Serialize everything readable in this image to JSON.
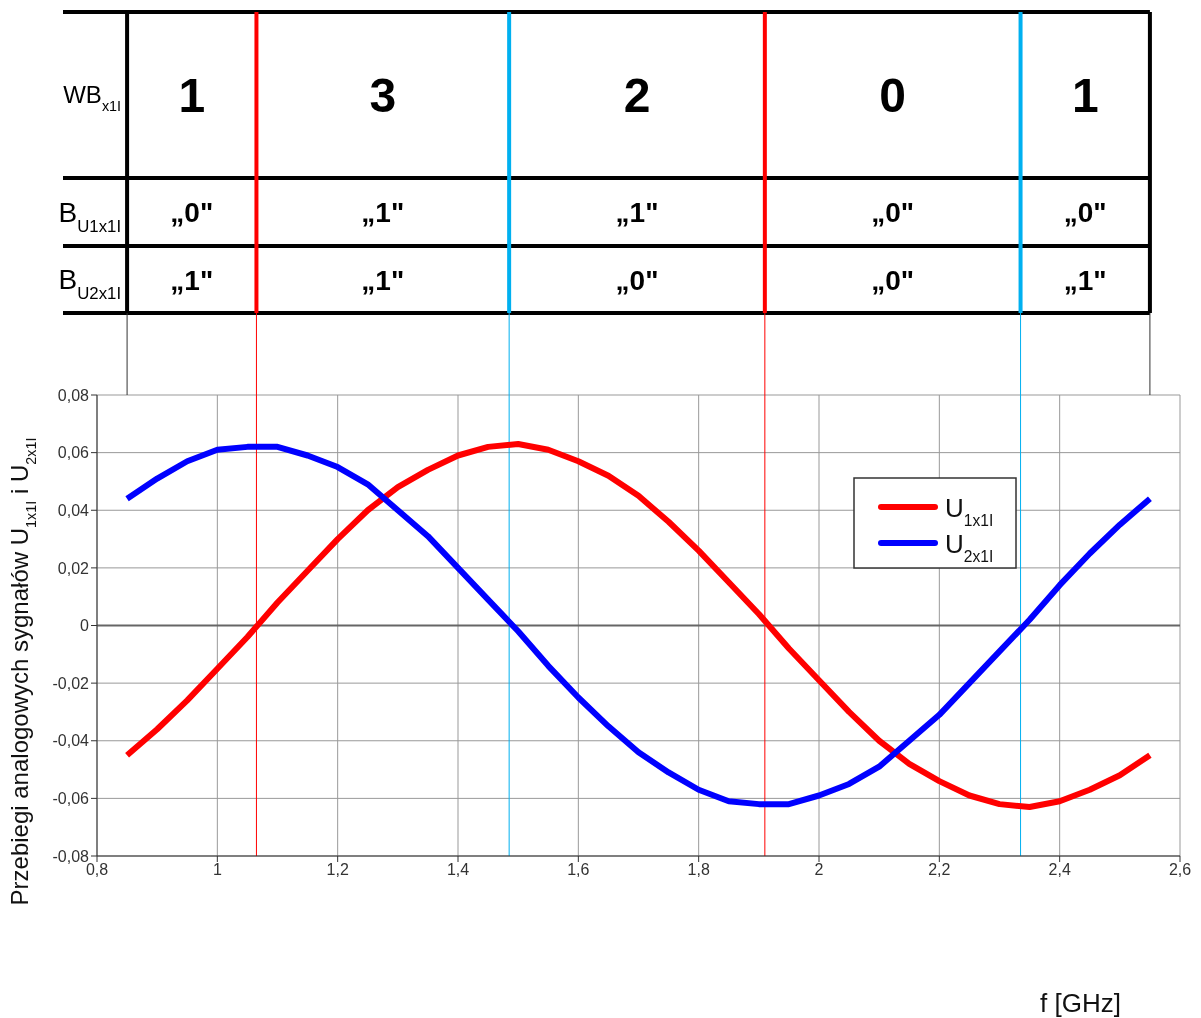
{
  "chart_data": {
    "type": "line",
    "xlabel": "f [GHz]",
    "ylabel": "Przebiegi analogowych sygnałów U$_{1x1I}$ i U$_{2x1I}$",
    "x": [
      0.85,
      0.9,
      0.95,
      1.0,
      1.05,
      1.1,
      1.15,
      1.2,
      1.25,
      1.3,
      1.35,
      1.4,
      1.45,
      1.5,
      1.55,
      1.6,
      1.65,
      1.7,
      1.75,
      1.8,
      1.85,
      1.9,
      1.95,
      2.0,
      2.05,
      2.1,
      2.15,
      2.2,
      2.25,
      2.3,
      2.35,
      2.4,
      2.45,
      2.5,
      2.55
    ],
    "series": [
      {
        "name": "U$_{1x1I}$",
        "color": "#ff0000",
        "values": [
          -0.045,
          -0.036,
          -0.026,
          -0.015,
          -0.004,
          0.008,
          0.019,
          0.03,
          0.04,
          0.048,
          0.054,
          0.059,
          0.062,
          0.063,
          0.061,
          0.057,
          0.052,
          0.045,
          0.036,
          0.026,
          0.015,
          0.004,
          -0.008,
          -0.019,
          -0.03,
          -0.04,
          -0.048,
          -0.054,
          -0.059,
          -0.062,
          -0.063,
          -0.061,
          -0.057,
          -0.052,
          -0.045
        ]
      },
      {
        "name": "U$_{2x1I}$",
        "color": "#0000ff",
        "values": [
          0.044,
          0.051,
          0.057,
          0.061,
          0.062,
          0.062,
          0.059,
          0.055,
          0.049,
          0.04,
          0.031,
          0.02,
          0.009,
          -0.002,
          -0.014,
          -0.025,
          -0.035,
          -0.044,
          -0.051,
          -0.057,
          -0.061,
          -0.062,
          -0.062,
          -0.059,
          -0.055,
          -0.049,
          -0.04,
          -0.031,
          -0.02,
          -0.009,
          0.002,
          0.014,
          0.025,
          0.035,
          0.044
        ]
      }
    ],
    "xlim": [
      0.8,
      2.6
    ],
    "xticks": [
      {
        "value": 0.8,
        "label": "0,8"
      },
      1,
      {
        "value": 1.2,
        "label": "1,2"
      },
      {
        "value": 1.4,
        "label": "1,4"
      },
      {
        "value": 1.6,
        "label": "1,6"
      },
      {
        "value": 1.8,
        "label": "1,8"
      },
      2,
      {
        "value": 2.2,
        "label": "2,2"
      },
      {
        "value": 2.4,
        "label": "2,4"
      },
      {
        "value": 2.6,
        "label": "2,6"
      }
    ],
    "ylim": [
      -0.08,
      0.08
    ],
    "yticks": [
      {
        "value": -0.08,
        "label": "-0,08"
      },
      {
        "value": -0.06,
        "label": "-0,06"
      },
      {
        "value": -0.04,
        "label": "-0,04"
      },
      {
        "value": -0.02,
        "label": "-0,02"
      },
      0,
      {
        "value": 0.02,
        "label": "0,02"
      },
      {
        "value": 0.04,
        "label": "0,04"
      },
      {
        "value": 0.06,
        "label": "0,06"
      },
      {
        "value": 0.08,
        "label": "0,08"
      }
    ],
    "ref_lines": [
      {
        "axis": "x",
        "value": 1.065,
        "color": "#ff0000"
      },
      {
        "axis": "x",
        "value": 1.485,
        "color": "#00b0f0"
      },
      {
        "axis": "x",
        "value": 1.91,
        "color": "#ff0000"
      },
      {
        "axis": "x",
        "value": 2.335,
        "color": "#00b0f0"
      },
      {
        "axis": "y",
        "value": 0,
        "color": "#666666"
      }
    ],
    "annotations": [
      "WB$_{x1I}$",
      "1",
      "3",
      "2",
      "0",
      "1",
      "B$_{U1x1I}$",
      "„0\"",
      "„1\"",
      "„1\"",
      "„0\"",
      "„0\"",
      "B$_{U2x1I}$",
      "„1\"",
      "„1\"",
      "„0\"",
      "„0\"",
      "„1\""
    ],
    "grid": true,
    "legend": "top right",
    "marker": "none",
    "line_style": "solid"
  }
}
